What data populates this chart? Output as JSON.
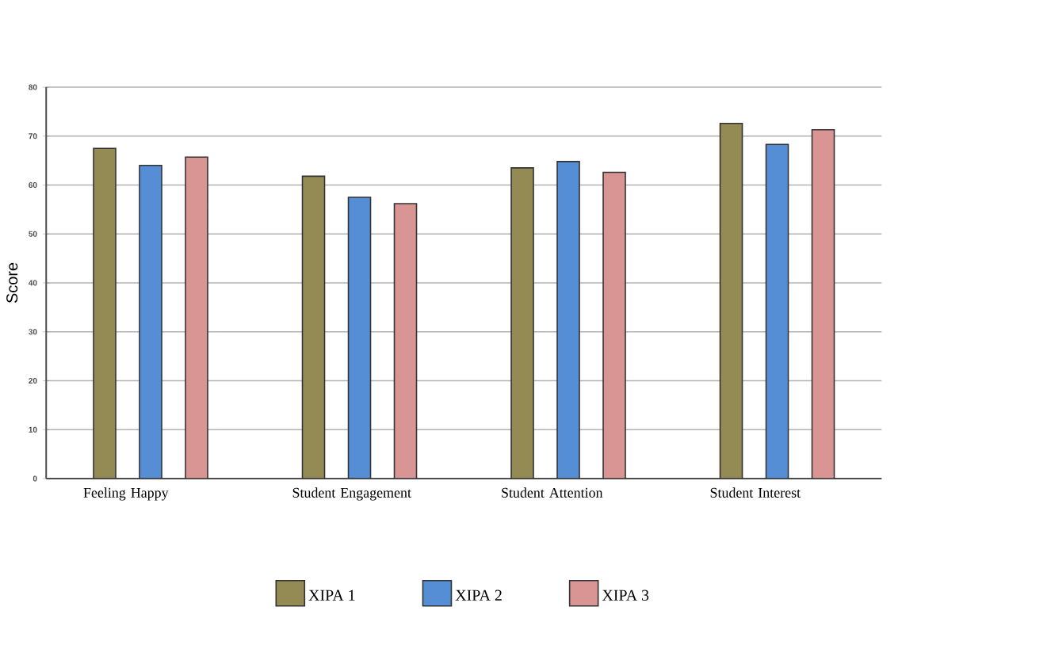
{
  "chart_data": {
    "type": "bar",
    "ylabel": "Score",
    "categories": [
      "Feeling Happy",
      "Student Engagement",
      "Student Attention",
      "Student Interest"
    ],
    "series": [
      {
        "name": "XIPA 1",
        "color": "#948b54",
        "values": [
          67.5,
          61.8,
          63.5,
          72.6
        ]
      },
      {
        "name": "XIPA 2",
        "color": "#558ed5",
        "values": [
          64.0,
          57.5,
          64.8,
          68.3
        ]
      },
      {
        "name": "XIPA 3",
        "color": "#d99594",
        "values": [
          65.7,
          56.2,
          62.6,
          71.3
        ]
      }
    ],
    "ylim": [
      0,
      80
    ],
    "yticks": [
      0,
      10,
      20,
      30,
      40,
      50,
      60,
      70,
      80
    ],
    "grid": "y",
    "legend": "bottom"
  }
}
